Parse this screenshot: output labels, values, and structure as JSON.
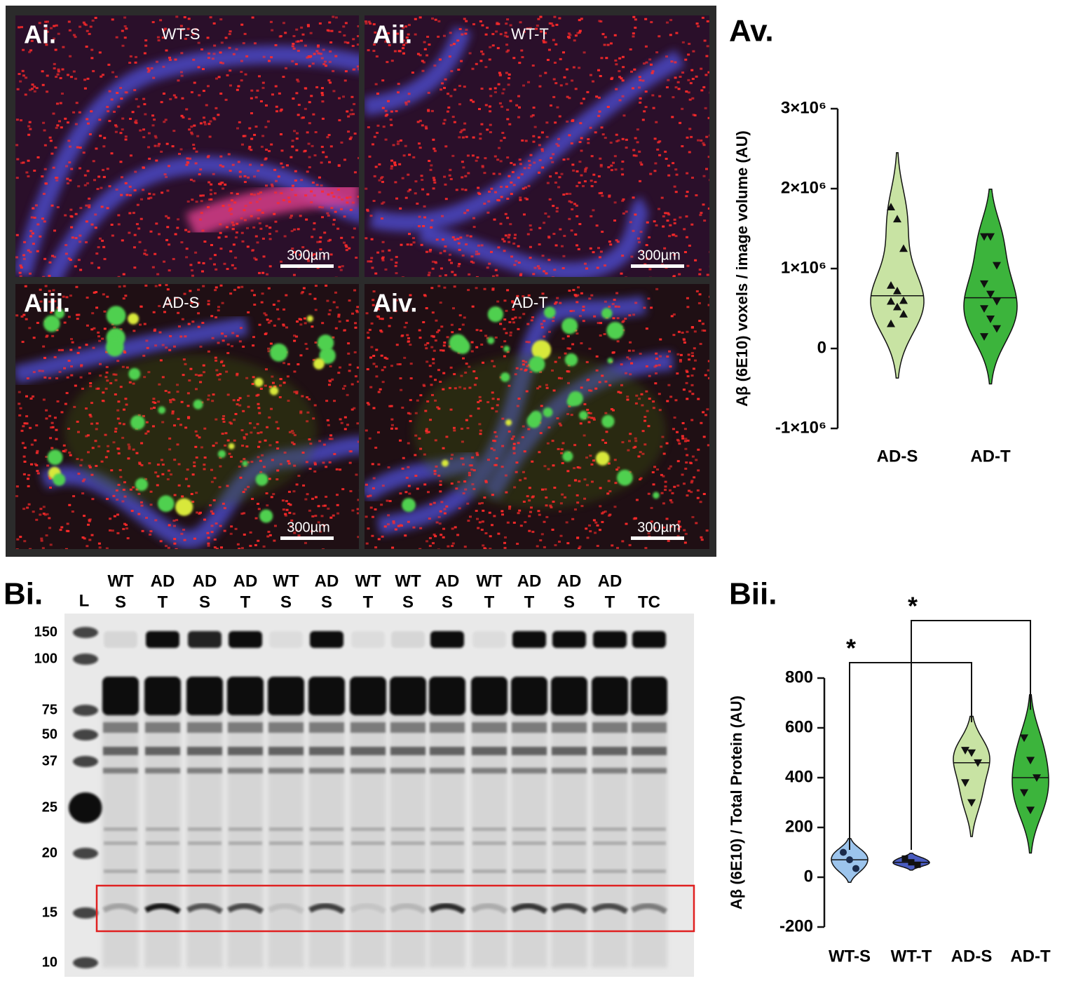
{
  "images": [
    {
      "label": "Ai.",
      "title": "WT-S",
      "scale_bar": "300µm"
    },
    {
      "label": "Aii.",
      "title": "WT-T",
      "scale_bar": "300µm"
    },
    {
      "label": "Aiii.",
      "title": "AD-S",
      "scale_bar": "300µm"
    },
    {
      "label": "Aiv.",
      "title": "AD-T",
      "scale_bar": "300µm"
    }
  ],
  "blot": {
    "label": "Bi.",
    "ladder": "L",
    "lanes": [
      {
        "top": "WT",
        "bottom": "S"
      },
      {
        "top": "AD",
        "bottom": "T"
      },
      {
        "top": "AD",
        "bottom": "S"
      },
      {
        "top": "AD",
        "bottom": "T"
      },
      {
        "top": "WT",
        "bottom": "S"
      },
      {
        "top": "AD",
        "bottom": "S"
      },
      {
        "top": "WT",
        "bottom": "T"
      },
      {
        "top": "WT",
        "bottom": "S"
      },
      {
        "top": "AD",
        "bottom": "S"
      },
      {
        "top": "WT",
        "bottom": "T"
      },
      {
        "top": "AD",
        "bottom": "T"
      },
      {
        "top": "AD",
        "bottom": "S"
      },
      {
        "top": "AD",
        "bottom": "T"
      },
      {
        "bottom": "TC"
      }
    ],
    "markers": [
      "150",
      "100",
      "75",
      "50",
      "37",
      "25",
      "20",
      "15",
      "10"
    ]
  },
  "chart_data": [
    {
      "type": "violin",
      "panel": "Av.",
      "ylabel": "Aβ (6E10) voxels / image volume (AU)",
      "ylim": [
        -1000000,
        3000000
      ],
      "yticks": [
        {
          "value": -1000000,
          "label": "-1×10⁶"
        },
        0,
        {
          "value": 1000000,
          "label": "1×10⁶"
        },
        {
          "value": 2000000,
          "label": "2×10⁶"
        },
        {
          "value": 3000000,
          "label": "3×10⁶"
        }
      ],
      "series": [
        {
          "name": "AD-S",
          "color": "#c8e3a3",
          "marker": "triangle-up",
          "values": [
            1770000,
            1620000,
            1250000,
            790000,
            720000,
            600000,
            590000,
            520000,
            430000,
            310000
          ]
        },
        {
          "name": "AD-T",
          "color": "#3cb43c",
          "marker": "triangle-down",
          "values": [
            1400000,
            1400000,
            1040000,
            810000,
            680000,
            590000,
            500000,
            370000,
            250000,
            150000
          ]
        }
      ]
    },
    {
      "type": "violin",
      "panel": "Bii.",
      "ylabel": "Aβ (6E10) / Total Protein (AU)",
      "ylim": [
        -200,
        800
      ],
      "yticks": [
        -200,
        0,
        200,
        400,
        600,
        800
      ],
      "series": [
        {
          "name": "WT-S",
          "color": "#9cc4ec",
          "marker": "circle",
          "values": [
            100,
            70,
            35
          ]
        },
        {
          "name": "WT-T",
          "color": "#4a5cc0",
          "marker": "square",
          "values": [
            75,
            60,
            50
          ]
        },
        {
          "name": "AD-S",
          "color": "#c8e3a3",
          "marker": "triangle-down",
          "values": [
            510,
            500,
            460,
            380,
            300
          ]
        },
        {
          "name": "AD-T",
          "color": "#3cb43c",
          "marker": "triangle-down",
          "values": [
            560,
            470,
            400,
            340,
            270
          ]
        }
      ],
      "annotations": [
        {
          "text": "*",
          "from": "WT-S",
          "to": "AD-S"
        },
        {
          "text": "*",
          "from": "WT-T",
          "to": "AD-T"
        }
      ]
    }
  ]
}
